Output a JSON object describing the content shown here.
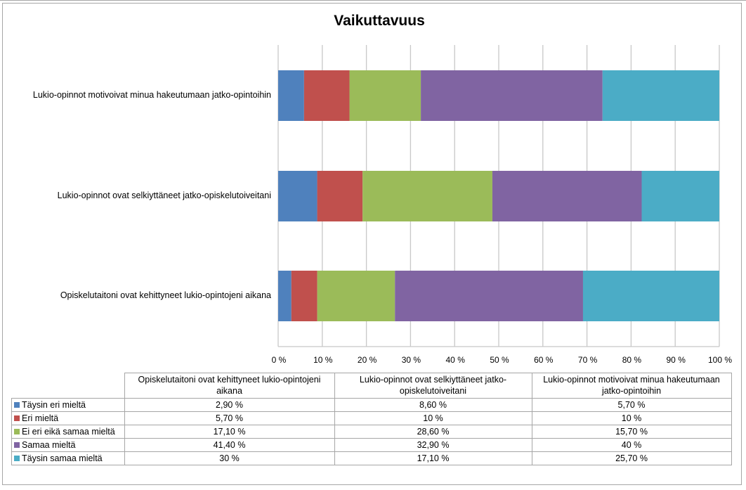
{
  "chart_data": {
    "type": "bar",
    "orientation": "horizontal",
    "stacking": "percent",
    "title": "Vaikuttavuus",
    "xlabel": "",
    "ylabel": "",
    "xlim": [
      0,
      100
    ],
    "xticks": [
      "0 %",
      "10 %",
      "20 %",
      "30 %",
      "40 %",
      "50 %",
      "60 %",
      "70 %",
      "80 %",
      "90 %",
      "100 %"
    ],
    "grid": true,
    "legend": "data-table-bottom",
    "categories": [
      "Opiskelutaitoni ovat kehittyneet lukio-opintojeni aikana",
      "Lukio-opinnot ovat selkiyttäneet jatko-opiskelutoiveitani",
      "Lukio-opinnot motivoivat minua hakeutumaan jatko-opintoihin"
    ],
    "table_headers": [
      "Opiskelutaitoni ovat kehittyneet lukio-opintojeni aikana",
      "Lukio-opinnot ovat selkiyttäneet jatko-opiskelutoiveitani",
      "Lukio-opinnot motivoivat minua hakeutumaan jatko-opintoihin"
    ],
    "series": [
      {
        "name": "Täysin eri mieltä",
        "color": "#4f81bd",
        "values": [
          2.9,
          8.6,
          5.7
        ],
        "labels": [
          "2,90 %",
          "8,60 %",
          "5,70 %"
        ]
      },
      {
        "name": "Eri mieltä",
        "color": "#c0504d",
        "values": [
          5.7,
          10,
          10
        ],
        "labels": [
          "5,70 %",
          "10 %",
          "10 %"
        ]
      },
      {
        "name": "Ei eri eikä samaa mieltä",
        "color": "#9bbb59",
        "values": [
          17.1,
          28.6,
          15.7
        ],
        "labels": [
          "17,10 %",
          "28,60 %",
          "15,70 %"
        ]
      },
      {
        "name": "Samaa mieltä",
        "color": "#8064a2",
        "values": [
          41.4,
          32.9,
          40
        ],
        "labels": [
          "41,40 %",
          "32,90 %",
          "40 %"
        ]
      },
      {
        "name": "Täysin samaa mieltä",
        "color": "#4bacc6",
        "values": [
          30,
          17.1,
          25.7
        ],
        "labels": [
          "30 %",
          "17,10 %",
          "25,70 %"
        ]
      }
    ]
  }
}
